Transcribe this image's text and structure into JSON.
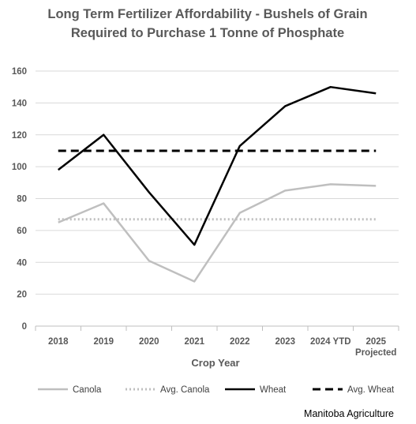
{
  "chart_data": {
    "type": "line",
    "title": "Long Term Fertilizer Affordability - Bushels of Grain Required to Purchase 1 Tonne of Phosphate",
    "title_lines": [
      "Long Term Fertilizer Affordability - Bushels of Grain",
      "Required to Purchase 1 Tonne of Phosphate"
    ],
    "xlabel": "Crop Year",
    "ylabel": "",
    "categories": [
      [
        "2018"
      ],
      [
        "2019"
      ],
      [
        "2020"
      ],
      [
        "2021"
      ],
      [
        "2022"
      ],
      [
        "2023"
      ],
      [
        "2024 YTD"
      ],
      [
        "2025",
        "Projected"
      ]
    ],
    "ylim": [
      0,
      160
    ],
    "yticks": [
      0,
      20,
      40,
      60,
      80,
      100,
      120,
      140,
      160
    ],
    "grid": true,
    "legend_position": "bottom",
    "series": [
      {
        "name": "Canola",
        "values": [
          65,
          77,
          41,
          28,
          71,
          85,
          89,
          88
        ],
        "color": "#bfbfbf",
        "style": "solid"
      },
      {
        "name": "Avg. Canola",
        "values": [
          67,
          67,
          67,
          67,
          67,
          67,
          67,
          67
        ],
        "color": "#bfbfbf",
        "style": "dotted"
      },
      {
        "name": "Wheat",
        "values": [
          98,
          120,
          84,
          51,
          113,
          138,
          150,
          146
        ],
        "color": "#000000",
        "style": "solid"
      },
      {
        "name": "Avg. Wheat",
        "values": [
          110,
          110,
          110,
          110,
          110,
          110,
          110,
          110
        ],
        "color": "#000000",
        "style": "dashed"
      }
    ]
  },
  "source_label": "Manitoba Agriculture"
}
